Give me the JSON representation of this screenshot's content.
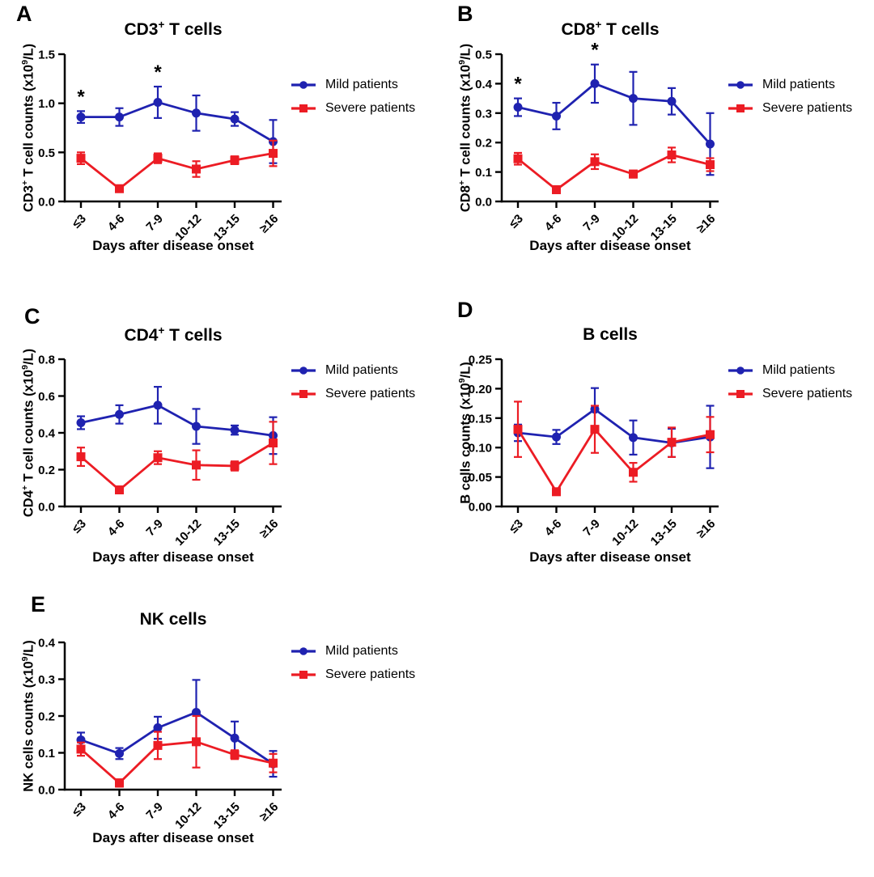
{
  "figure": {
    "xlabel": "Days after disease onset",
    "legend_labels": [
      "Mild patients",
      "Severe patients"
    ],
    "colors": {
      "mild": "#1f22b0",
      "severe": "#ec1c24",
      "axis": "#000000",
      "significance": "#000000"
    }
  },
  "chart_data": [
    {
      "id": "A",
      "type": "line",
      "title_segments": [
        {
          "text": "CD3"
        },
        {
          "text": "+",
          "sup": true
        },
        {
          "text": " T cells"
        }
      ],
      "ylabel_segments": [
        {
          "text": "CD3"
        },
        {
          "text": "+",
          "sup": true
        },
        {
          "text": " T cell counts (x10"
        },
        {
          "text": "9",
          "sup": true
        },
        {
          "text": "/L)"
        }
      ],
      "xlabel": "Days after disease onset",
      "categories": [
        "≤3",
        "4-6",
        "7-9",
        "10-12",
        "13-15",
        "≥16"
      ],
      "ylim": [
        0,
        1.5
      ],
      "ytick_values": [
        0,
        0.5,
        1.0,
        1.5
      ],
      "ytick_labels": [
        "0.0",
        "0.5",
        "1.0",
        "1.5"
      ],
      "series": [
        {
          "name": "Mild patients",
          "color": "#1f22b0",
          "marker": "circle",
          "values": [
            0.86,
            0.86,
            1.01,
            0.9,
            0.84,
            0.61
          ],
          "errors": [
            0.06,
            0.09,
            0.16,
            0.18,
            0.07,
            0.22
          ]
        },
        {
          "name": "Severe patients",
          "color": "#ec1c24",
          "marker": "square",
          "values": [
            0.44,
            0.13,
            0.44,
            0.33,
            0.42,
            0.49
          ],
          "errors": [
            0.06,
            0.02,
            0.05,
            0.08,
            0.04,
            0.13
          ]
        }
      ],
      "significance": [
        {
          "category_index": 0,
          "symbol": "*"
        },
        {
          "category_index": 2,
          "symbol": "*"
        }
      ],
      "legend_position": "right"
    },
    {
      "id": "B",
      "type": "line",
      "title_segments": [
        {
          "text": "CD8"
        },
        {
          "text": "+",
          "sup": true
        },
        {
          "text": " T cells"
        }
      ],
      "ylabel_segments": [
        {
          "text": "CD8"
        },
        {
          "text": "+",
          "sup": true
        },
        {
          "text": " T cell counts (x10"
        },
        {
          "text": "9",
          "sup": true
        },
        {
          "text": "/L)"
        }
      ],
      "xlabel": "Days after disease onset",
      "categories": [
        "≤3",
        "4-6",
        "7-9",
        "10-12",
        "13-15",
        "≥16"
      ],
      "ylim": [
        0,
        0.5
      ],
      "ytick_values": [
        0,
        0.1,
        0.2,
        0.3,
        0.4,
        0.5
      ],
      "ytick_labels": [
        "0.0",
        "0.1",
        "0.2",
        "0.3",
        "0.4",
        "0.5"
      ],
      "series": [
        {
          "name": "Mild patients",
          "color": "#1f22b0",
          "marker": "circle",
          "values": [
            0.32,
            0.29,
            0.4,
            0.35,
            0.34,
            0.195
          ],
          "errors": [
            0.03,
            0.045,
            0.065,
            0.09,
            0.045,
            0.105
          ]
        },
        {
          "name": "Severe patients",
          "color": "#ec1c24",
          "marker": "square",
          "values": [
            0.145,
            0.04,
            0.135,
            0.093,
            0.158,
            0.125
          ],
          "errors": [
            0.02,
            0.012,
            0.025,
            0.012,
            0.025,
            0.022
          ]
        }
      ],
      "significance": [
        {
          "category_index": 0,
          "symbol": "*"
        },
        {
          "category_index": 2,
          "symbol": "*"
        }
      ],
      "legend_position": "right"
    },
    {
      "id": "C",
      "type": "line",
      "title_segments": [
        {
          "text": "CD4"
        },
        {
          "text": "+",
          "sup": true
        },
        {
          "text": " T cells"
        }
      ],
      "ylabel_segments": [
        {
          "text": "CD4"
        },
        {
          "text": "+",
          "sup": true
        },
        {
          "text": " T cell counts (x10"
        },
        {
          "text": "9",
          "sup": true
        },
        {
          "text": "/L)"
        }
      ],
      "xlabel": "Days after disease onset",
      "categories": [
        "≤3",
        "4-6",
        "7-9",
        "10-12",
        "13-15",
        "≥16"
      ],
      "ylim": [
        0,
        0.8
      ],
      "ytick_values": [
        0,
        0.2,
        0.4,
        0.6,
        0.8
      ],
      "ytick_labels": [
        "0.0",
        "0.2",
        "0.4",
        "0.6",
        "0.8"
      ],
      "series": [
        {
          "name": "Mild patients",
          "color": "#1f22b0",
          "marker": "circle",
          "values": [
            0.455,
            0.5,
            0.55,
            0.435,
            0.415,
            0.385
          ],
          "errors": [
            0.035,
            0.05,
            0.1,
            0.095,
            0.025,
            0.1
          ]
        },
        {
          "name": "Severe patients",
          "color": "#ec1c24",
          "marker": "square",
          "values": [
            0.27,
            0.09,
            0.265,
            0.225,
            0.22,
            0.345
          ],
          "errors": [
            0.05,
            0.012,
            0.035,
            0.08,
            0.025,
            0.115
          ]
        }
      ],
      "significance": [],
      "legend_position": "right"
    },
    {
      "id": "D",
      "type": "line",
      "title_segments": [
        {
          "text": "B cells"
        }
      ],
      "ylabel_segments": [
        {
          "text": "B cells counts (x10"
        },
        {
          "text": "9",
          "sup": true
        },
        {
          "text": "/L)"
        }
      ],
      "xlabel": "Days after disease onset",
      "categories": [
        "≤3",
        "4-6",
        "7-9",
        "10-12",
        "13-15",
        "≥16"
      ],
      "ylim": [
        0,
        0.25
      ],
      "ytick_values": [
        0,
        0.05,
        0.1,
        0.15,
        0.2,
        0.25
      ],
      "ytick_labels": [
        "0.00",
        "0.05",
        "0.10",
        "0.15",
        "0.20",
        "0.25"
      ],
      "series": [
        {
          "name": "Mild patients",
          "color": "#1f22b0",
          "marker": "circle",
          "values": [
            0.125,
            0.118,
            0.165,
            0.117,
            0.108,
            0.118
          ],
          "errors": [
            0.014,
            0.012,
            0.036,
            0.029,
            0.024,
            0.053
          ]
        },
        {
          "name": "Severe patients",
          "color": "#ec1c24",
          "marker": "square",
          "values": [
            0.131,
            0.025,
            0.131,
            0.058,
            0.109,
            0.122
          ],
          "errors": [
            0.047,
            0.005,
            0.04,
            0.016,
            0.025,
            0.03
          ]
        }
      ],
      "significance": [],
      "legend_position": "right"
    },
    {
      "id": "E",
      "type": "line",
      "title_segments": [
        {
          "text": "NK cells"
        }
      ],
      "ylabel_segments": [
        {
          "text": "NK cells counts (x10"
        },
        {
          "text": "9",
          "sup": true
        },
        {
          "text": "/L)"
        }
      ],
      "xlabel": "Days after disease onset",
      "categories": [
        "≤3",
        "4-6",
        "7-9",
        "10-12",
        "13-15",
        "≥16"
      ],
      "ylim": [
        0,
        0.4
      ],
      "ytick_values": [
        0,
        0.1,
        0.2,
        0.3,
        0.4
      ],
      "ytick_labels": [
        "0.0",
        "0.1",
        "0.2",
        "0.3",
        "0.4"
      ],
      "series": [
        {
          "name": "Mild patients",
          "color": "#1f22b0",
          "marker": "circle",
          "values": [
            0.135,
            0.098,
            0.168,
            0.21,
            0.14,
            0.07
          ],
          "errors": [
            0.02,
            0.015,
            0.03,
            0.088,
            0.045,
            0.035
          ]
        },
        {
          "name": "Severe patients",
          "color": "#ec1c24",
          "marker": "square",
          "values": [
            0.11,
            0.018,
            0.12,
            0.13,
            0.095,
            0.072
          ],
          "errors": [
            0.018,
            0.01,
            0.037,
            0.07,
            0.012,
            0.025
          ]
        }
      ],
      "significance": [],
      "legend_position": "right"
    }
  ]
}
